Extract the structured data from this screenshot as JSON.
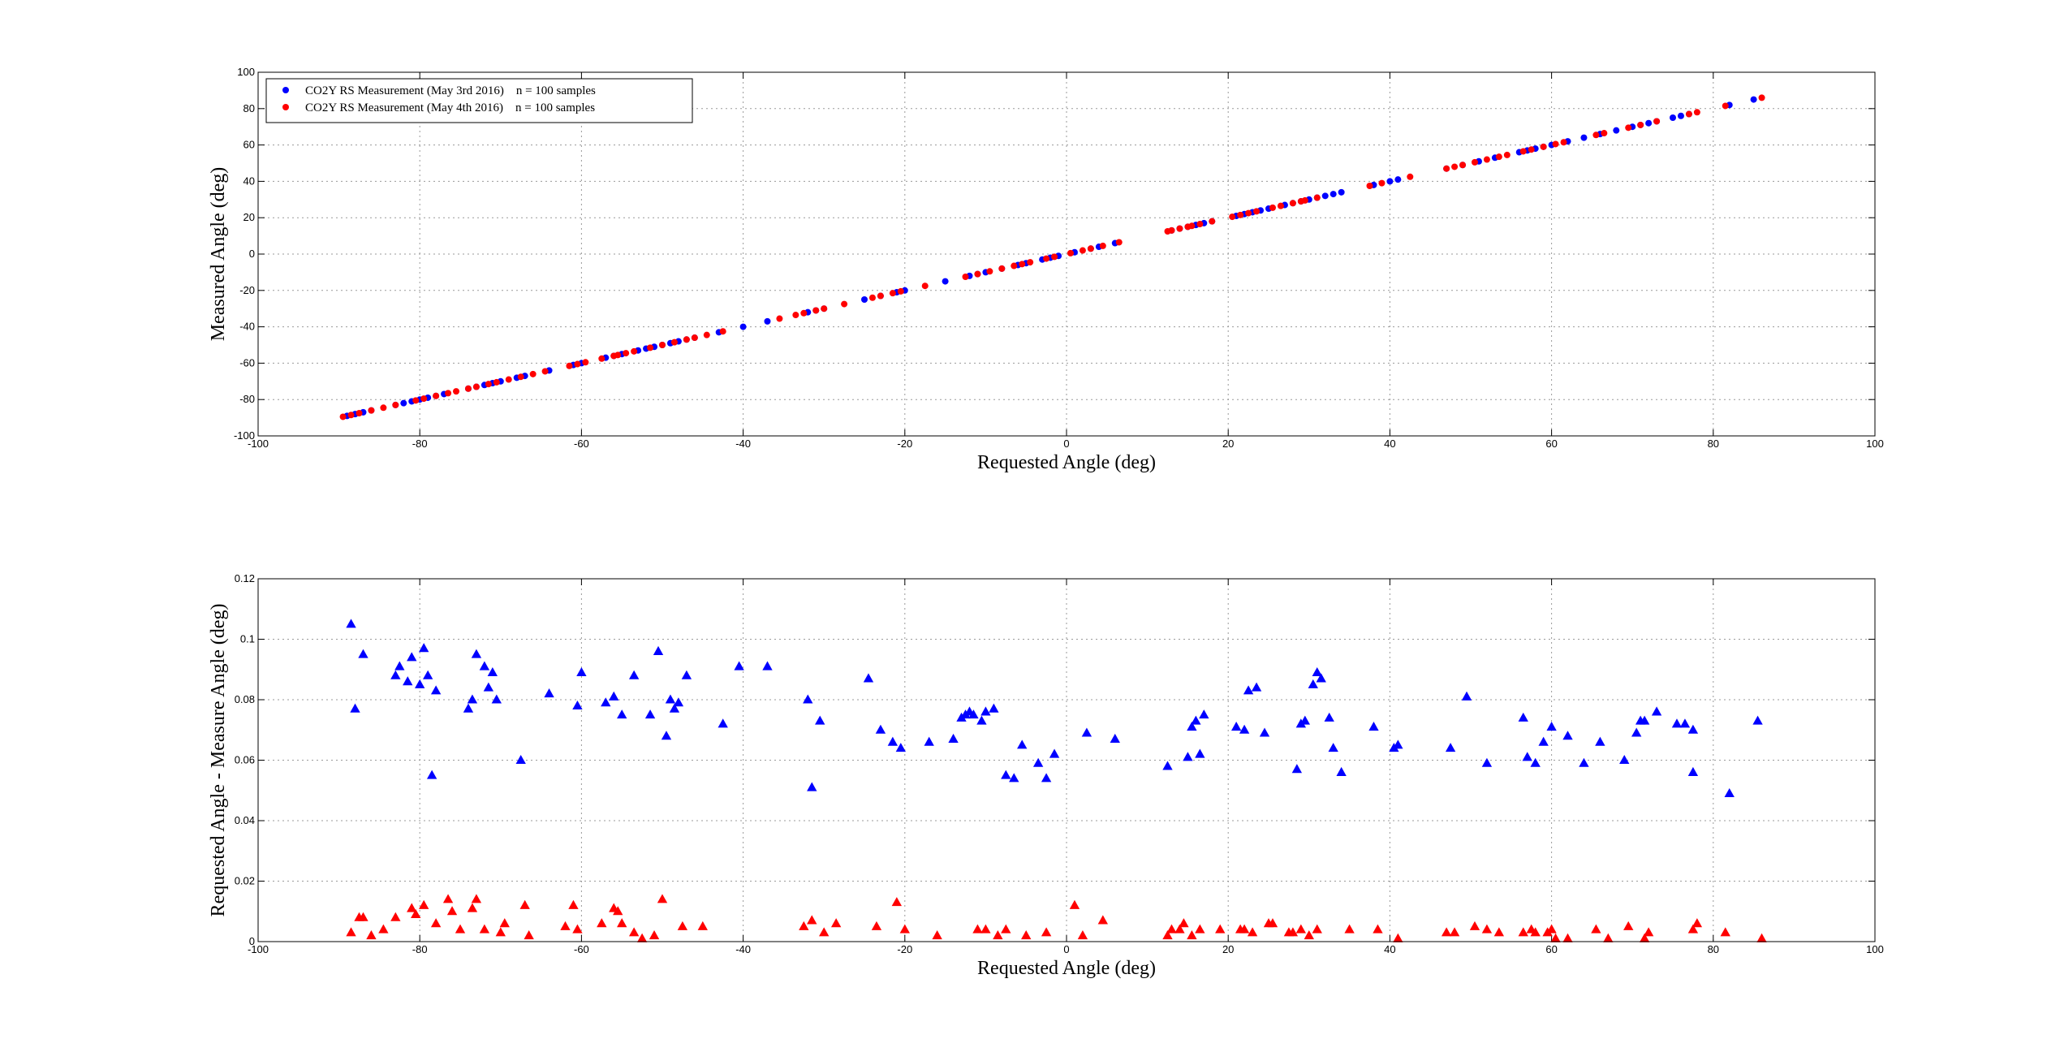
{
  "chart_data": [
    {
      "type": "scatter",
      "title": "",
      "xlabel": "Requested Angle (deg)",
      "ylabel": "Measured Angle (deg)",
      "xlim": [
        -100,
        100
      ],
      "ylim": [
        -100,
        100
      ],
      "xticks": [
        -100,
        -80,
        -60,
        -40,
        -20,
        0,
        20,
        40,
        60,
        80,
        100
      ],
      "yticks": [
        -100,
        -80,
        -60,
        -40,
        -20,
        0,
        20,
        40,
        60,
        80,
        100
      ],
      "xtick_labels": [
        "-100",
        "-80",
        "-60",
        "-40",
        "-20",
        "0",
        "20",
        "40",
        "60",
        "80",
        "100"
      ],
      "ytick_labels": [
        "-100",
        "-80",
        "-60",
        "-40",
        "-20",
        "0",
        "20",
        "40",
        "60",
        "80",
        "100"
      ],
      "grid": true,
      "legend_position": "top-left",
      "marker": "circle",
      "series": [
        {
          "name": "CO2Y RS Measurement (May 3rd 2016)    n = 100 samples",
          "color": "#0000ff",
          "x": [
            -89,
            -88,
            -87,
            -86,
            -83,
            -82,
            -81,
            -80,
            -79,
            -78,
            -77,
            -74,
            -73,
            -72,
            -71,
            -70,
            -68,
            -67,
            -64,
            -61,
            -60,
            -57,
            -56,
            -55,
            -53,
            -52,
            -51,
            -50,
            -49,
            -48,
            -47,
            -46,
            -43,
            -40,
            -37,
            -32,
            -31,
            -30,
            -25,
            -23,
            -21,
            -20,
            -15,
            -12,
            -11,
            -10,
            -8,
            -6,
            -5,
            -3,
            -2,
            -1,
            1,
            3,
            4,
            6,
            13,
            14,
            15,
            16,
            17,
            18,
            21,
            22,
            23,
            24,
            25,
            27,
            28,
            29,
            30,
            31,
            32,
            33,
            34,
            38,
            40,
            41,
            47,
            49,
            51,
            53,
            56,
            57,
            58,
            59,
            60,
            62,
            64,
            66,
            68,
            70,
            71,
            72,
            73,
            75,
            76,
            77,
            82,
            85
          ],
          "y": [
            -89,
            -88,
            -87,
            -86,
            -83,
            -82,
            -81,
            -80,
            -79,
            -78,
            -77,
            -74,
            -73,
            -72,
            -71,
            -70,
            -68,
            -67,
            -64,
            -61,
            -60,
            -57,
            -56,
            -55,
            -53,
            -52,
            -51,
            -50,
            -49,
            -48,
            -47,
            -46,
            -43,
            -40,
            -37,
            -32,
            -31,
            -30,
            -25,
            -23,
            -21,
            -20,
            -15,
            -12,
            -11,
            -10,
            -8,
            -6,
            -5,
            -3,
            -2,
            -1,
            1,
            3,
            4,
            6,
            13,
            14,
            15,
            16,
            17,
            18,
            21,
            22,
            23,
            24,
            25,
            27,
            28,
            29,
            30,
            31,
            32,
            33,
            34,
            38,
            40,
            41,
            47,
            49,
            51,
            53,
            56,
            57,
            58,
            59,
            60,
            62,
            64,
            66,
            68,
            70,
            71,
            72,
            73,
            75,
            76,
            77,
            82,
            85
          ]
        },
        {
          "name": "CO2Y RS Measurement (May 4th 2016)    n = 100 samples",
          "color": "#ff0000",
          "x": [
            -89.5,
            -88.5,
            -87.5,
            -86,
            -84.5,
            -83,
            -80.5,
            -79.5,
            -78,
            -76.5,
            -75.5,
            -74,
            -73,
            -71.5,
            -70.5,
            -69,
            -67.5,
            -61.5,
            -60.5,
            -59.5,
            -57.5,
            -56,
            -55.5,
            -54.5,
            -53.5,
            -51.5,
            -50,
            -48.5,
            -46,
            -44.5,
            -42.5,
            -33.5,
            -32.5,
            -31,
            -30,
            -27.5,
            -24,
            -23,
            -21.5,
            -20.5,
            -17.5,
            -12.5,
            -11,
            -9.5,
            -8,
            -6.5,
            -5.5,
            -4.5,
            -1.5,
            0.5,
            2,
            3,
            4.5,
            6.5,
            13,
            14,
            15,
            15.5,
            16.5,
            18,
            20.5,
            21.5,
            22.5,
            23.5,
            25.5,
            26.5,
            28,
            29,
            29.5,
            31,
            37.5,
            39,
            42.5,
            47,
            48,
            49,
            50.5,
            52,
            53.5,
            54.5,
            57.5,
            59,
            60.5,
            61.5,
            65.5,
            66.5,
            69.5,
            71,
            73,
            77,
            78,
            81.5,
            86,
            -64.5,
            -35.5,
            -66,
            -47,
            -2.5,
            12.5,
            56.5
          ],
          "y": [
            -89.5,
            -88.5,
            -87.5,
            -86,
            -84.5,
            -83,
            -80.5,
            -79.5,
            -78,
            -76.5,
            -75.5,
            -74,
            -73,
            -71.5,
            -70.5,
            -69,
            -67.5,
            -61.5,
            -60.5,
            -59.5,
            -57.5,
            -56,
            -55.5,
            -54.5,
            -53.5,
            -51.5,
            -50,
            -48.5,
            -46,
            -44.5,
            -42.5,
            -33.5,
            -32.5,
            -31,
            -30,
            -27.5,
            -24,
            -23,
            -21.5,
            -20.5,
            -17.5,
            -12.5,
            -11,
            -9.5,
            -8,
            -6.5,
            -5.5,
            -4.5,
            -1.5,
            0.5,
            2,
            3,
            4.5,
            6.5,
            13,
            14,
            15,
            15.5,
            16.5,
            18,
            20.5,
            21.5,
            22.5,
            23.5,
            25.5,
            26.5,
            28,
            29,
            29.5,
            31,
            37.5,
            39,
            42.5,
            47,
            48,
            49,
            50.5,
            52,
            53.5,
            54.5,
            57.5,
            59,
            60.5,
            61.5,
            65.5,
            66.5,
            69.5,
            71,
            73,
            77,
            78,
            81.5,
            86,
            -64.5,
            -35.5,
            -66,
            -47,
            -2.5,
            12.5,
            56.5
          ]
        }
      ]
    },
    {
      "type": "scatter",
      "title": "",
      "xlabel": "Requested Angle (deg)",
      "ylabel": "Requested Angle - Measure Angle (deg)",
      "xlim": [
        -100,
        100
      ],
      "ylim": [
        0,
        0.12
      ],
      "xticks": [
        -100,
        -80,
        -60,
        -40,
        -20,
        0,
        20,
        40,
        60,
        80,
        100
      ],
      "yticks": [
        0,
        0.02,
        0.04,
        0.06,
        0.08,
        0.1,
        0.12
      ],
      "xtick_labels": [
        "-100",
        "-80",
        "-60",
        "-40",
        "-20",
        "0",
        "20",
        "40",
        "60",
        "80",
        "100"
      ],
      "ytick_labels": [
        "0",
        "0.02",
        "0.04",
        "0.06",
        "0.08",
        "0.1",
        "0.12"
      ],
      "grid": true,
      "marker": "triangle",
      "series": [
        {
          "color": "#0000ff",
          "x": [
            -88.5,
            -88,
            -87,
            -83,
            -82.5,
            -81.5,
            -81,
            -80,
            -79.5,
            -79,
            -78.5,
            -78,
            -74,
            -73.5,
            -73,
            -72,
            -71.5,
            -71,
            -70.5,
            -67.5,
            -64,
            -60.5,
            -60,
            -57,
            -56,
            -55,
            -53.5,
            -51.5,
            -50.5,
            -49.5,
            -49,
            -48.5,
            -48,
            -47,
            -42.5,
            -40.5,
            -37,
            -32,
            -31.5,
            -30.5,
            -24.5,
            -23,
            -21.5,
            -20.5,
            -17,
            -14,
            -13,
            -12.5,
            -12,
            -11.5,
            -10.5,
            -10,
            -9,
            -7.5,
            -6.5,
            -5.5,
            -3.5,
            -2.5,
            -1.5,
            2.5,
            6,
            12.5,
            15,
            15.5,
            16,
            16.5,
            17,
            21,
            22,
            22.5,
            23.5,
            24.5,
            28.5,
            29,
            29.5,
            30.5,
            31,
            31.5,
            32.5,
            33,
            34,
            38,
            40.5,
            41,
            47.5,
            49.5,
            52,
            56.5,
            57,
            58,
            59,
            60,
            62,
            64,
            66,
            69,
            70.5,
            71,
            71.5,
            73,
            75.5,
            76.5,
            77.5,
            77.5,
            82,
            85.5
          ],
          "y": [
            0.105,
            0.077,
            0.095,
            0.088,
            0.091,
            0.086,
            0.094,
            0.085,
            0.097,
            0.088,
            0.055,
            0.083,
            0.077,
            0.08,
            0.095,
            0.091,
            0.084,
            0.089,
            0.08,
            0.06,
            0.082,
            0.078,
            0.089,
            0.079,
            0.081,
            0.075,
            0.088,
            0.075,
            0.096,
            0.068,
            0.08,
            0.077,
            0.079,
            0.088,
            0.072,
            0.091,
            0.091,
            0.08,
            0.051,
            0.073,
            0.087,
            0.07,
            0.066,
            0.064,
            0.066,
            0.067,
            0.074,
            0.075,
            0.076,
            0.075,
            0.073,
            0.076,
            0.077,
            0.055,
            0.054,
            0.065,
            0.059,
            0.054,
            0.062,
            0.069,
            0.067,
            0.058,
            0.061,
            0.071,
            0.073,
            0.062,
            0.075,
            0.071,
            0.07,
            0.083,
            0.084,
            0.069,
            0.057,
            0.072,
            0.073,
            0.085,
            0.089,
            0.087,
            0.074,
            0.064,
            0.056,
            0.071,
            0.064,
            0.065,
            0.064,
            0.081,
            0.059,
            0.074,
            0.061,
            0.059,
            0.066,
            0.071,
            0.068,
            0.059,
            0.066,
            0.06,
            0.069,
            0.073,
            0.073,
            0.076,
            0.072,
            0.072,
            0.056,
            0.07,
            0.049,
            0.073
          ]
        },
        {
          "color": "#ff0000",
          "x": [
            -88.5,
            -87.5,
            -87,
            -86,
            -84.5,
            -83,
            -81,
            -80.5,
            -79.5,
            -78,
            -76.5,
            -76,
            -75,
            -73.5,
            -73,
            -72,
            -70,
            -69.5,
            -67,
            -66.5,
            -62,
            -61,
            -60.5,
            -57.5,
            -56,
            -55.5,
            -55,
            -53.5,
            -52.5,
            -51,
            -50,
            -47.5,
            -45,
            -32.5,
            -31.5,
            -30,
            -28.5,
            -23.5,
            -21,
            -20,
            -16,
            -11,
            -10,
            -8.5,
            -7.5,
            -5,
            -2.5,
            1,
            2,
            4.5,
            12.5,
            13,
            14,
            14.5,
            15.5,
            16.5,
            19,
            21.5,
            22,
            23,
            25,
            25.5,
            27.5,
            28,
            29,
            30,
            31,
            35,
            38.5,
            41,
            47,
            48,
            50.5,
            52,
            53.5,
            56.5,
            57.5,
            58,
            59.5,
            60,
            60.5,
            62,
            65.5,
            67,
            69.5,
            71.5,
            72,
            77.5,
            78,
            81.5,
            86
          ],
          "y": [
            0.003,
            0.008,
            0.008,
            0.002,
            0.004,
            0.008,
            0.011,
            0.009,
            0.012,
            0.006,
            0.014,
            0.01,
            0.004,
            0.011,
            0.014,
            0.004,
            0.003,
            0.006,
            0.012,
            0.002,
            0.005,
            0.012,
            0.004,
            0.006,
            0.011,
            0.01,
            0.006,
            0.003,
            0.001,
            0.002,
            0.014,
            0.005,
            0.005,
            0.005,
            0.007,
            0.003,
            0.006,
            0.005,
            0.013,
            0.004,
            0.002,
            0.004,
            0.004,
            0.002,
            0.004,
            0.002,
            0.003,
            0.012,
            0.002,
            0.007,
            0.002,
            0.004,
            0.004,
            0.006,
            0.002,
            0.004,
            0.004,
            0.004,
            0.004,
            0.003,
            0.006,
            0.006,
            0.003,
            0.003,
            0.004,
            0.002,
            0.004,
            0.004,
            0.004,
            0.001,
            0.003,
            0.003,
            0.005,
            0.004,
            0.003,
            0.003,
            0.004,
            0.003,
            0.003,
            0.004,
            0.001,
            0.001,
            0.004,
            0.001,
            0.005,
            0.001,
            0.003,
            0.004,
            0.006,
            0.003,
            0.001
          ]
        }
      ]
    }
  ]
}
